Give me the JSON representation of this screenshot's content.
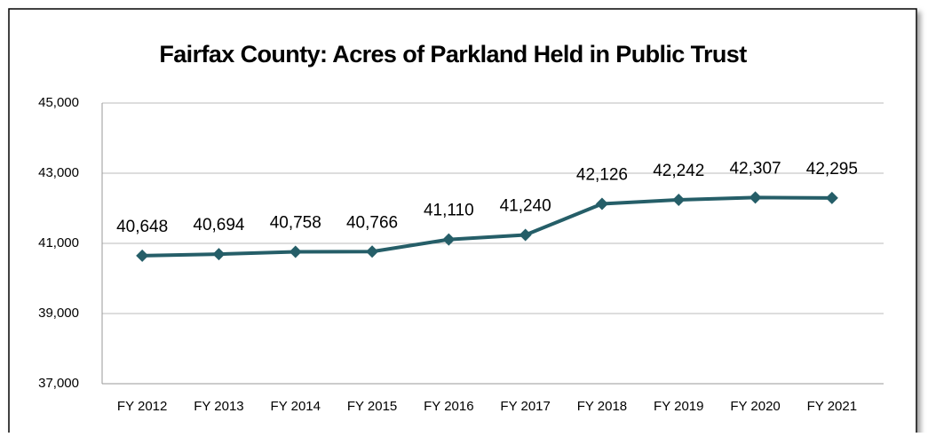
{
  "chart_data": {
    "type": "line",
    "title": "Fairfax County: Acres of Parkland Held in Public Trust",
    "categories": [
      "FY 2012",
      "FY 2013",
      "FY 2014",
      "FY 2015",
      "FY 2016",
      "FY 2017",
      "FY 2018",
      "FY 2019",
      "FY 2020",
      "FY 2021"
    ],
    "series": [
      {
        "name": "Acres of Parkland",
        "color": "#255e68",
        "values": [
          40648,
          40694,
          40758,
          40766,
          41110,
          41240,
          42126,
          42242,
          42307,
          42295
        ],
        "value_labels": [
          "40,648",
          "40,694",
          "40,758",
          "40,766",
          "41,110",
          "41,240",
          "42,126",
          "42,242",
          "42,307",
          "42,295"
        ]
      }
    ],
    "ylim": [
      37000,
      45000
    ],
    "yticks": [
      {
        "value": 37000,
        "label": "37,000"
      },
      {
        "value": 39000,
        "label": "39,000"
      },
      {
        "value": 41000,
        "label": "41,000"
      },
      {
        "value": 43000,
        "label": "43,000"
      },
      {
        "value": 45000,
        "label": "45,000"
      }
    ],
    "grid": true
  }
}
